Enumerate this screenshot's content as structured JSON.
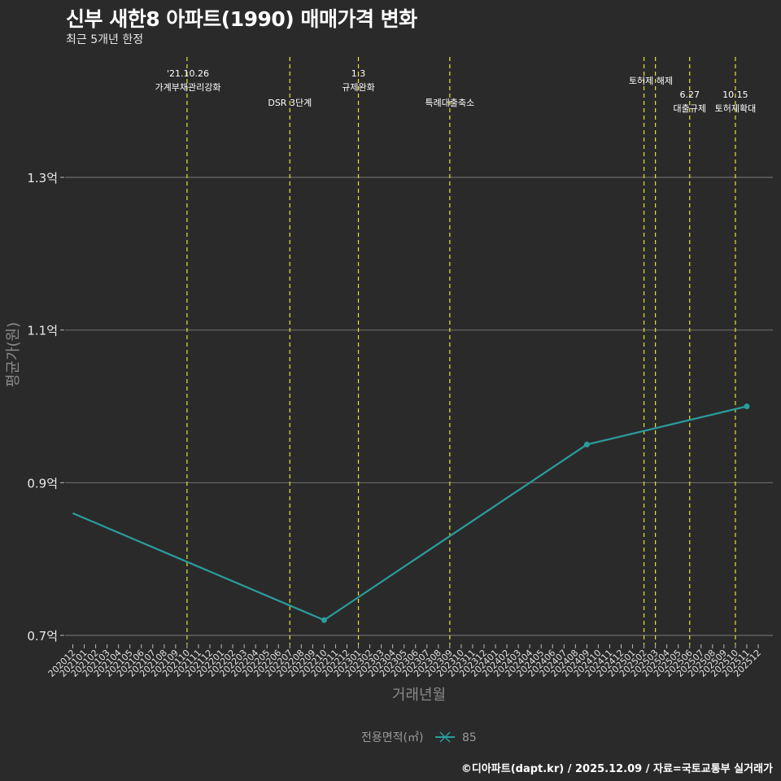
{
  "header": {
    "title": "신부 새한8 아파트(1990) 매매가격 변화",
    "subtitle": "최근 5개년 한정"
  },
  "axes": {
    "ylabel": "평균가(원)",
    "xlabel": "거래년월",
    "yticks": [
      {
        "label": "1.3억",
        "value": 1.3
      },
      {
        "label": "1.1억",
        "value": 1.1
      },
      {
        "label": "0.9억",
        "value": 0.9
      },
      {
        "label": "0.7억",
        "value": 0.7
      }
    ]
  },
  "legend": {
    "title": "전용면적(㎡)",
    "items": [
      {
        "label": "85",
        "color": "#2a9d9b"
      }
    ]
  },
  "caption": "©디아파트(dapt.kr) / 2025.12.09 / 자료=국토교통부 실거래가",
  "colors": {
    "background": "#2a2a2b",
    "gridline": "#6b6b6b",
    "event_line": "#e6e62e",
    "series": "#2a9d9b"
  },
  "chart_data": {
    "type": "line",
    "title": "신부 새한8 아파트(1990) 매매가격 변화",
    "subtitle": "최근 5개년 한정",
    "xlabel": "거래년월",
    "ylabel": "평균가(원)",
    "unit": "억",
    "ylim": [
      0.69,
      1.45
    ],
    "grid": "horizontal",
    "legend_position": "bottom",
    "categories": [
      "202012",
      "202101",
      "202102",
      "202103",
      "202104",
      "202105",
      "202106",
      "202107",
      "202108",
      "202109",
      "202110",
      "202111",
      "202112",
      "202201",
      "202202",
      "202203",
      "202204",
      "202205",
      "202206",
      "202207",
      "202208",
      "202209",
      "202210",
      "202211",
      "202212",
      "202301",
      "202302",
      "202303",
      "202304",
      "202305",
      "202306",
      "202307",
      "202308",
      "202309",
      "202310",
      "202311",
      "202312",
      "202401",
      "202402",
      "202403",
      "202404",
      "202405",
      "202406",
      "202407",
      "202408",
      "202409",
      "202410",
      "202411",
      "202412",
      "202501",
      "202502",
      "202503",
      "202504",
      "202505",
      "202506",
      "202507",
      "202508",
      "202509",
      "202510",
      "202511",
      "202512"
    ],
    "series": [
      {
        "name": "85",
        "points": [
          {
            "x": "202012",
            "y": 0.86,
            "marker": false
          },
          {
            "x": "202210",
            "y": 0.72,
            "marker": true
          },
          {
            "x": "202409",
            "y": 0.95,
            "marker": true
          },
          {
            "x": "202511",
            "y": 1.0,
            "marker": true
          }
        ]
      }
    ],
    "events": [
      {
        "x": "202110",
        "label_line1": "'21.10.26",
        "label_line2": "가계부채관리강화",
        "row": 1
      },
      {
        "x": "202207",
        "label_line1": "",
        "label_line2": "DSR 3단계",
        "row": 2
      },
      {
        "x": "202301",
        "label_line1": "1.3",
        "label_line2": "규제완화",
        "row": 1
      },
      {
        "x": "202309",
        "label_line1": "",
        "label_line2": "특례대출축소",
        "row": 2
      },
      {
        "x": "202502",
        "label_line1": "",
        "label_line2": "토허제 해제",
        "row": 0
      },
      {
        "x": "202503",
        "label_line1": "",
        "label_line2": "",
        "row": 0
      },
      {
        "x": "202506",
        "label_line1": "6.27",
        "label_line2": "대출규제",
        "row": 2
      },
      {
        "x": "202510",
        "label_line1": "10.15",
        "label_line2": "토허제확대",
        "row": 2
      }
    ]
  }
}
